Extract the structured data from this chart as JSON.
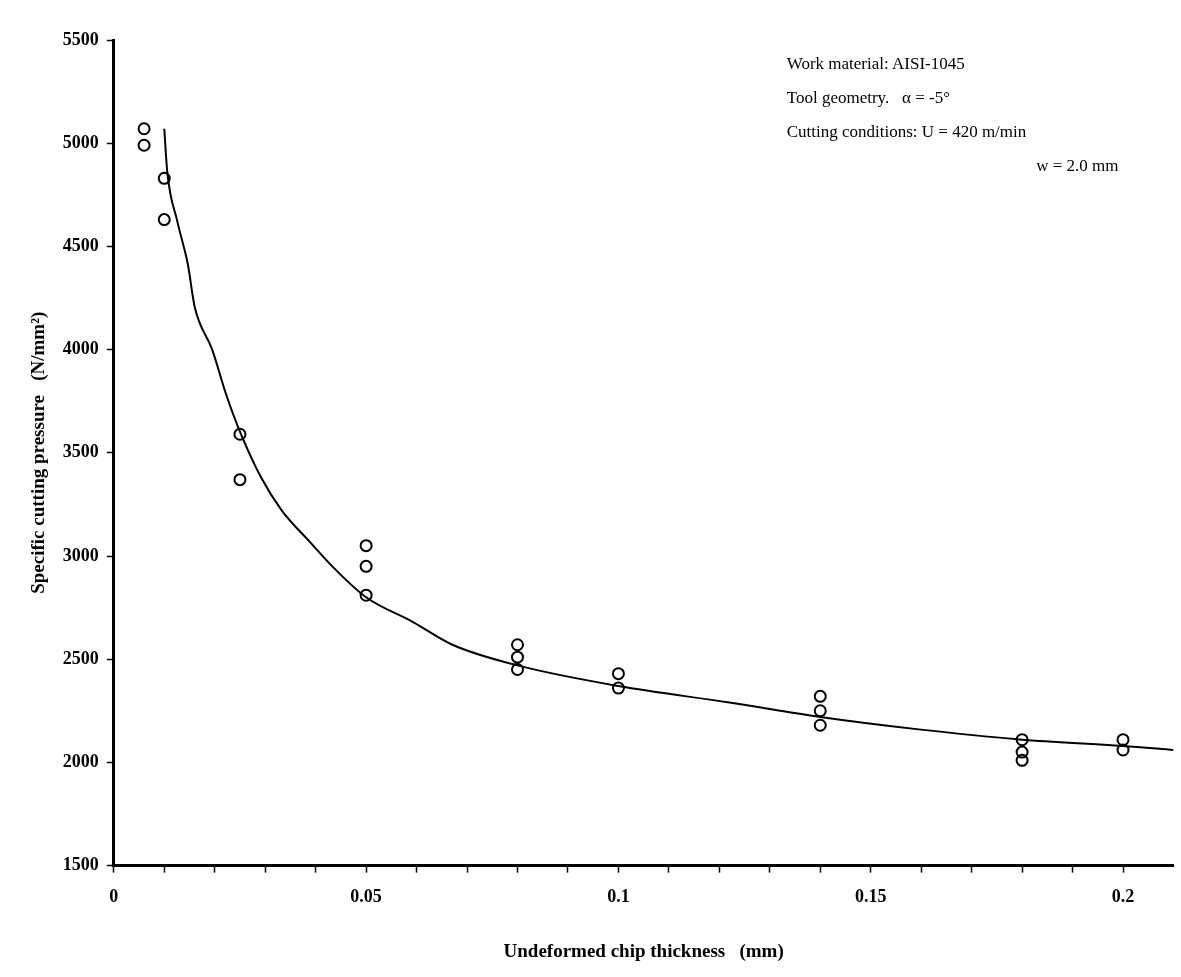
{
  "chart_data": {
    "type": "scatter",
    "xlabel": "Undeformed chip thickness   (mm)",
    "ylabel": "Specific cutting pressure   (N/mm²)",
    "xlim": [
      0,
      0.21
    ],
    "ylim": [
      1500,
      5500
    ],
    "xticks": [
      0,
      {
        "value": 0.01,
        "label": null
      },
      {
        "value": 0.02,
        "label": null
      },
      {
        "value": 0.03,
        "label": null
      },
      {
        "value": 0.04,
        "label": null
      },
      {
        "value": 0.05,
        "label": "0.05"
      },
      {
        "value": 0.06,
        "label": null
      },
      {
        "value": 0.07,
        "label": null
      },
      {
        "value": 0.08,
        "label": null
      },
      {
        "value": 0.09,
        "label": null
      },
      {
        "value": 0.1,
        "label": "0.1"
      },
      {
        "value": 0.11,
        "label": null
      },
      {
        "value": 0.12,
        "label": null
      },
      {
        "value": 0.13,
        "label": null
      },
      {
        "value": 0.14,
        "label": null
      },
      {
        "value": 0.15,
        "label": "0.15"
      },
      {
        "value": 0.16,
        "label": null
      },
      {
        "value": 0.17,
        "label": null
      },
      {
        "value": 0.18,
        "label": null
      },
      {
        "value": 0.19,
        "label": null
      },
      {
        "value": 0.2,
        "label": "0.2"
      }
    ],
    "yticks": [
      1500,
      2000,
      2500,
      3000,
      3500,
      4000,
      4500,
      5000,
      5500
    ],
    "grid": false,
    "legend": false,
    "annotations": [
      "Work material: AISI-1045",
      "Tool geometry.   α = -5°",
      "Cutting conditions: U = 420 m/min",
      "w = 2.0 mm"
    ],
    "series": [
      {
        "color": "#000000",
        "marker": "circle",
        "x": [
          0.006,
          0.006,
          0.01,
          0.01,
          0.025,
          0.025,
          0.05,
          0.05,
          0.05,
          0.08,
          0.08,
          0.08,
          0.1,
          0.1,
          0.14,
          0.14,
          0.14,
          0.18,
          0.18,
          0.18,
          0.2,
          0.2
        ],
        "values": [
          5070,
          4990,
          4830,
          4630,
          3590,
          3370,
          3050,
          2950,
          2810,
          2570,
          2510,
          2450,
          2430,
          2360,
          2320,
          2250,
          2180,
          2110,
          2050,
          2010,
          2110,
          2060
        ]
      },
      {
        "type": "line",
        "color": "#000000",
        "marker": "none",
        "x": [
          0.01,
          0.0106,
          0.0126,
          0.0147,
          0.016,
          0.0195,
          0.0223,
          0.0252,
          0.0292,
          0.0333,
          0.0388,
          0.0437,
          0.05,
          0.0593,
          0.0671,
          0.08,
          0.1,
          0.122,
          0.14,
          0.1595,
          0.18,
          0.2,
          0.21
        ],
        "values": [
          5070,
          4860,
          4620,
          4410,
          4210,
          4000,
          3780,
          3590,
          3380,
          3220,
          3070,
          2940,
          2800,
          2680,
          2570,
          2470,
          2370,
          2290,
          2220,
          2160,
          2110,
          2080,
          2060
        ]
      }
    ]
  }
}
